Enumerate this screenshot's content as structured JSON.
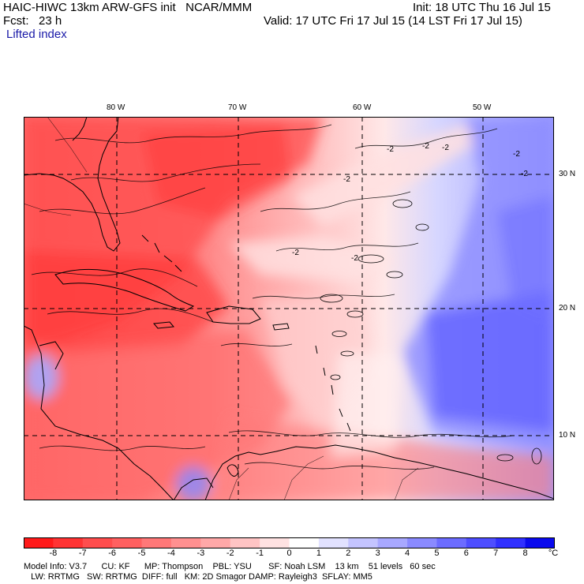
{
  "header": {
    "title": "HAIC-HIWC 13km ARW-GFS init   NCAR/MMM",
    "init": "Init: 18 UTC Thu 16 Jul 15",
    "fcst_label": "Fcst:   23 h",
    "valid": "Valid: 17 UTC Fri 17 Jul 15 (14 LST Fri 17 Jul 15)",
    "field": "Lifted index"
  },
  "map": {
    "longitude_labels": [
      "80 W",
      "70 W",
      "60 W",
      "50 W"
    ],
    "latitude_labels": [
      "30 N",
      "20 N",
      "10 N"
    ],
    "contour_labels": [
      "-2",
      "-2",
      "-2",
      "-2",
      "-2",
      "-2",
      "-2",
      "-2"
    ]
  },
  "colorbar": {
    "unit": "°C",
    "levels": [
      "-8",
      "-7",
      "-6",
      "-5",
      "-4",
      "-3",
      "-2",
      "-1",
      "0",
      "1",
      "2",
      "3",
      "4",
      "5",
      "6",
      "7",
      "8"
    ],
    "colors": [
      "#ff1a1a",
      "#ff3333",
      "#ff4d4d",
      "#ff6060",
      "#ff7878",
      "#ff9090",
      "#ffa8a8",
      "#ffc4c4",
      "#ffe2e2",
      "#ffffff",
      "#e2e2ff",
      "#c4c4ff",
      "#a8a8ff",
      "#8a8aff",
      "#6c6cff",
      "#4e4eff",
      "#3030ff",
      "#0a0aee"
    ]
  },
  "footer": {
    "line1": "Model Info: V3.7      CU: KF      MP: Thompson    PBL: YSU       SF: Noah LSM    13 km    51 levels   60 sec",
    "line2": "   LW: RRTMG   SW: RRTMG  DIFF: full   KM: 2D Smagor DAMP: Rayleigh3  SFLAY: MM5"
  }
}
